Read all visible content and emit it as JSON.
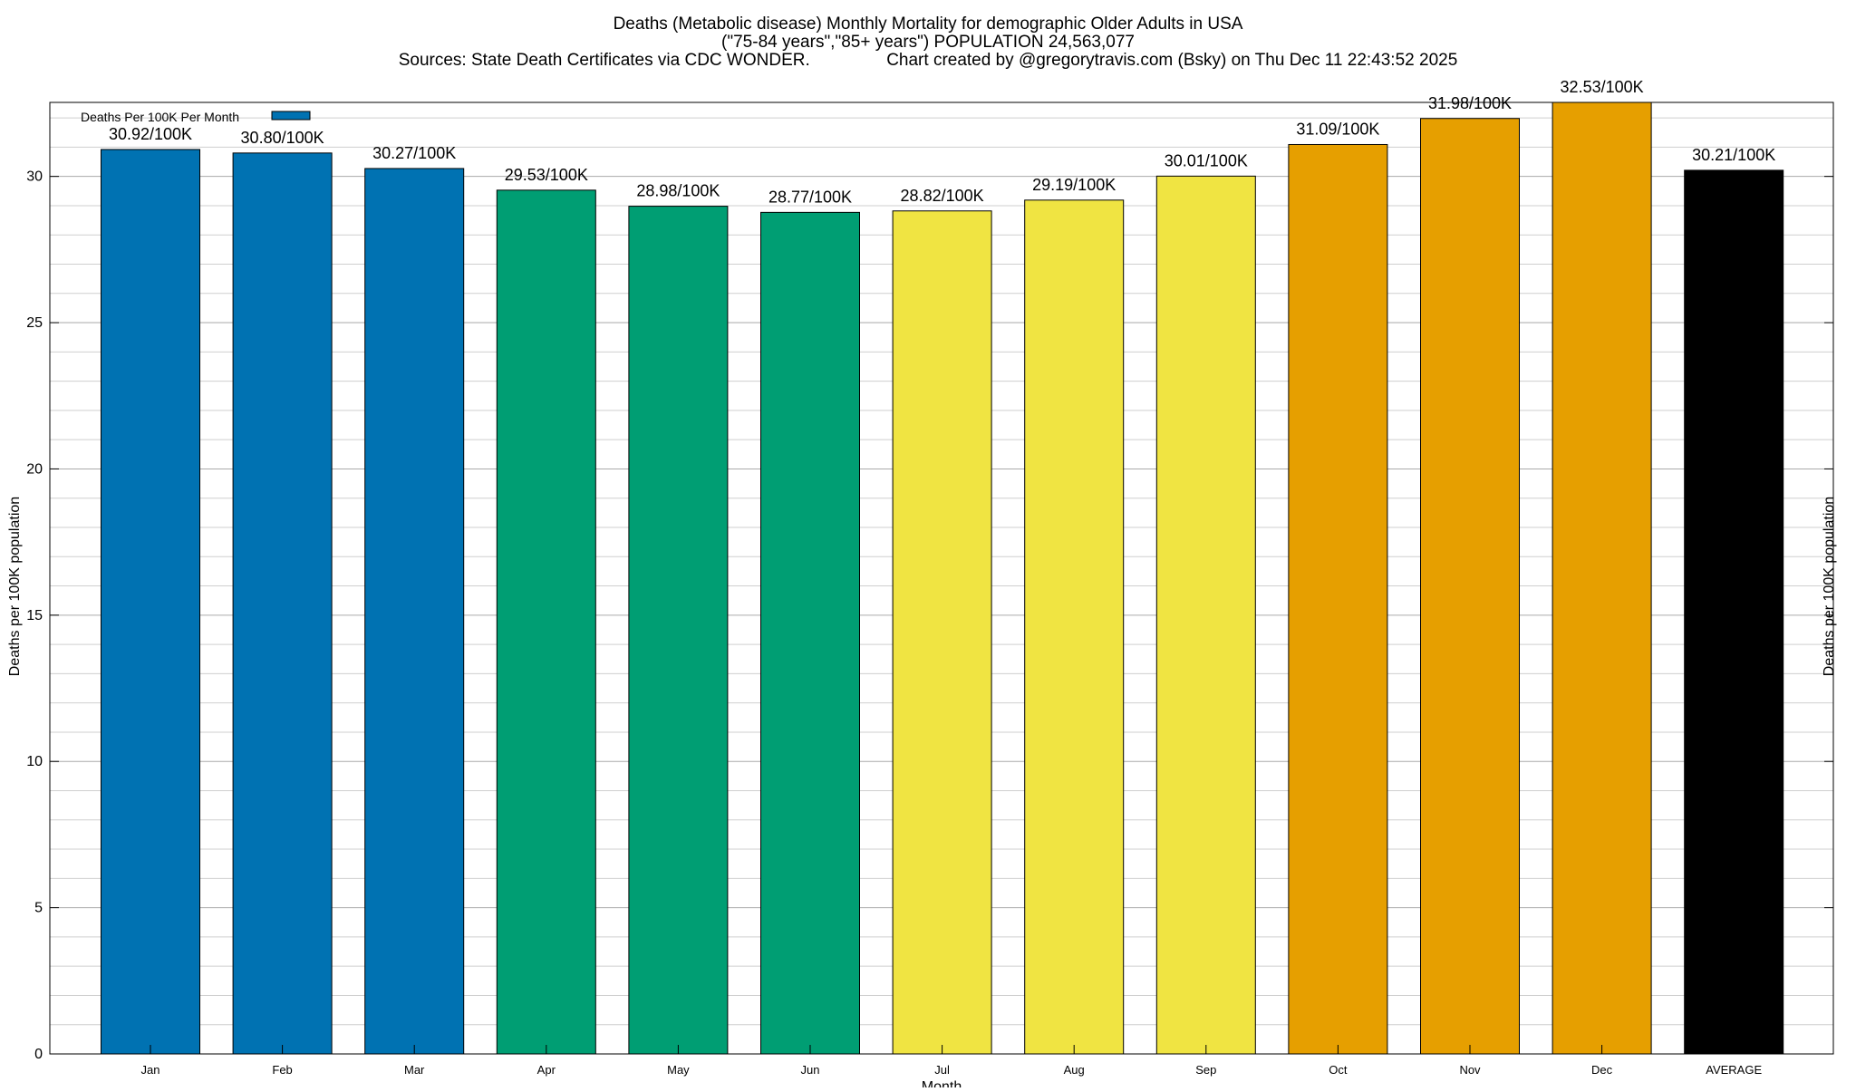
{
  "chart_data": {
    "type": "bar",
    "title_lines": [
      "Deaths (Metabolic disease) Monthly Mortality for demographic Older Adults in USA",
      "(\"75-84 years\",\"85+ years\") POPULATION 24,563,077",
      "Sources: State Death Certificates via CDC WONDER.                Chart created by @gregorytravis.com (Bsky) on Thu Dec 11 22:43:52 2025"
    ],
    "xlabel": "Month",
    "ylabel": "Deaths per 100K population",
    "ylabel_right": "Deaths per 100K population",
    "ylim": [
      0,
      32.53
    ],
    "yticks": [
      0,
      5,
      10,
      15,
      20,
      25,
      30
    ],
    "minor_grid_step": 1,
    "grid": true,
    "legend": {
      "position": "top-left",
      "entries": [
        {
          "label": "Deaths Per 100K Per Month",
          "color": "#0072b2"
        }
      ]
    },
    "categories": [
      "Jan",
      "Feb",
      "Mar",
      "Apr",
      "May",
      "Jun",
      "Jul",
      "Aug",
      "Sep",
      "Oct",
      "Nov",
      "Dec",
      "AVERAGE"
    ],
    "values": [
      30.92,
      30.8,
      30.27,
      29.53,
      28.98,
      28.77,
      28.82,
      29.19,
      30.01,
      31.09,
      31.98,
      32.53,
      30.21
    ],
    "data_labels": [
      "30.92/100K",
      "30.80/100K",
      "30.27/100K",
      "29.53/100K",
      "28.98/100K",
      "28.77/100K",
      "28.82/100K",
      "29.19/100K",
      "30.01/100K",
      "31.09/100K",
      "31.98/100K",
      "32.53/100K",
      "30.21/100K"
    ],
    "bar_colors": [
      "#0072b2",
      "#0072b2",
      "#0072b2",
      "#009e73",
      "#009e73",
      "#009e73",
      "#f0e442",
      "#f0e442",
      "#f0e442",
      "#e69f00",
      "#e69f00",
      "#e69f00",
      "#000000"
    ]
  }
}
